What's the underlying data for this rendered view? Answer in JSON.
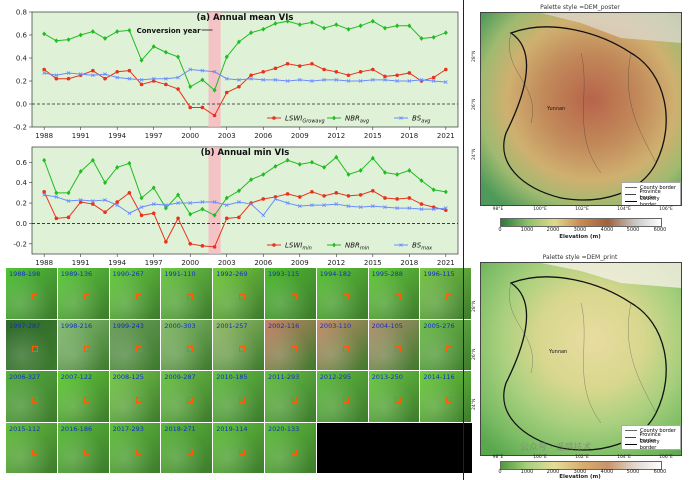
{
  "chart_data": [
    {
      "type": "line",
      "title": "(a) Annual mean VIs",
      "annotation": "Conversion year",
      "x": [
        1988,
        1989,
        1990,
        1991,
        1992,
        1993,
        1994,
        1995,
        1996,
        1997,
        1998,
        1999,
        2000,
        2001,
        2002,
        2003,
        2004,
        2005,
        2006,
        2007,
        2008,
        2009,
        2010,
        2011,
        2012,
        2013,
        2014,
        2015,
        2016,
        2017,
        2018,
        2019,
        2020,
        2021
      ],
      "xticks": [
        "1988",
        "1991",
        "1994",
        "1997",
        "2000",
        "2003",
        "2006",
        "2009",
        "2012",
        "2015",
        "2018",
        "2021"
      ],
      "ylim": [
        -0.2,
        0.8
      ],
      "yticks": [
        "0.8",
        "0.6",
        "0.4",
        "0.2",
        "0.0",
        "-0.2"
      ],
      "highlight_x": [
        2001.5,
        2002.5
      ],
      "zero_line": true,
      "legend_position": "lower-right",
      "series": [
        {
          "name": "LSWI",
          "sub": "Growavg",
          "color": "#e8331c",
          "marker": "circle",
          "values": [
            0.3,
            0.22,
            0.22,
            0.25,
            0.29,
            0.22,
            0.28,
            0.29,
            0.17,
            0.2,
            0.17,
            0.13,
            -0.03,
            -0.03,
            -0.1,
            0.1,
            0.15,
            0.25,
            0.28,
            0.31,
            0.35,
            0.33,
            0.35,
            0.3,
            0.28,
            0.25,
            0.28,
            0.3,
            0.24,
            0.25,
            0.27,
            0.2,
            0.23,
            0.3
          ]
        },
        {
          "name": "NBR",
          "sub": "avg",
          "color": "#22bb22",
          "marker": "diamond",
          "values": [
            0.61,
            0.55,
            0.56,
            0.6,
            0.63,
            0.57,
            0.63,
            0.64,
            0.38,
            0.5,
            0.45,
            0.41,
            0.15,
            0.21,
            0.12,
            0.41,
            0.54,
            0.62,
            0.65,
            0.7,
            0.72,
            0.69,
            0.71,
            0.66,
            0.69,
            0.65,
            0.68,
            0.72,
            0.66,
            0.68,
            0.68,
            0.57,
            0.58,
            0.62
          ]
        },
        {
          "name": "BS",
          "sub": "avg",
          "color": "#6a8cff",
          "marker": "x",
          "values": [
            0.27,
            0.25,
            0.27,
            0.26,
            0.25,
            0.26,
            0.23,
            0.22,
            0.21,
            0.22,
            0.22,
            0.23,
            0.3,
            0.29,
            0.28,
            0.22,
            0.21,
            0.22,
            0.21,
            0.21,
            0.2,
            0.21,
            0.2,
            0.21,
            0.21,
            0.2,
            0.2,
            0.21,
            0.21,
            0.2,
            0.2,
            0.21,
            0.2,
            0.19
          ]
        }
      ]
    },
    {
      "type": "line",
      "title": "(b) Annual min VIs",
      "x": [
        1988,
        1989,
        1990,
        1991,
        1992,
        1993,
        1994,
        1995,
        1996,
        1997,
        1998,
        1999,
        2000,
        2001,
        2002,
        2003,
        2004,
        2005,
        2006,
        2007,
        2008,
        2009,
        2010,
        2011,
        2012,
        2013,
        2014,
        2015,
        2016,
        2017,
        2018,
        2019,
        2020,
        2021
      ],
      "xticks": [
        "1988",
        "1991",
        "1994",
        "1997",
        "2000",
        "2003",
        "2006",
        "2009",
        "2012",
        "2015",
        "2018",
        "2021"
      ],
      "ylim": [
        -0.3,
        0.75
      ],
      "yticks": [
        "0.6",
        "0.4",
        "0.2",
        "0.0",
        "-0.2"
      ],
      "highlight_x": [
        2001.5,
        2002.5
      ],
      "zero_line": true,
      "legend_position": "lower-right",
      "series": [
        {
          "name": "LSWI",
          "sub": "min",
          "color": "#e8331c",
          "marker": "circle",
          "values": [
            0.31,
            0.05,
            0.06,
            0.21,
            0.19,
            0.11,
            0.21,
            0.3,
            0.08,
            0.1,
            -0.18,
            0.05,
            -0.2,
            -0.22,
            -0.23,
            0.05,
            0.06,
            0.2,
            0.24,
            0.26,
            0.29,
            0.26,
            0.31,
            0.27,
            0.3,
            0.27,
            0.28,
            0.32,
            0.25,
            0.24,
            0.25,
            0.19,
            0.16,
            0.13
          ]
        },
        {
          "name": "NBR",
          "sub": "min",
          "color": "#22bb22",
          "marker": "diamond",
          "values": [
            0.62,
            0.3,
            0.3,
            0.51,
            0.62,
            0.4,
            0.55,
            0.59,
            0.25,
            0.35,
            0.15,
            0.28,
            0.09,
            0.14,
            0.08,
            0.25,
            0.32,
            0.43,
            0.48,
            0.56,
            0.62,
            0.58,
            0.6,
            0.55,
            0.65,
            0.48,
            0.52,
            0.64,
            0.5,
            0.48,
            0.52,
            0.42,
            0.33,
            0.31
          ]
        },
        {
          "name": "BS",
          "sub": "max",
          "color": "#6a8cff",
          "marker": "x",
          "values": [
            0.28,
            0.26,
            0.22,
            0.23,
            0.22,
            0.23,
            0.18,
            0.1,
            0.16,
            0.19,
            0.18,
            0.2,
            0.2,
            0.21,
            0.21,
            0.18,
            0.21,
            0.19,
            0.08,
            0.24,
            0.2,
            0.17,
            0.18,
            0.18,
            0.19,
            0.17,
            0.16,
            0.17,
            0.16,
            0.15,
            0.15,
            0.14,
            0.14,
            0.15
          ]
        }
      ]
    }
  ],
  "tiles": [
    {
      "label": "1988-198",
      "color": "#52c43a"
    },
    {
      "label": "1989-136",
      "color": "#5fcf3e"
    },
    {
      "label": "1990-267",
      "color": "#68d040"
    },
    {
      "label": "1991-110",
      "color": "#6fcc48"
    },
    {
      "label": "1992-269",
      "color": "#78cf40"
    },
    {
      "label": "1993-115",
      "color": "#4fbd30"
    },
    {
      "label": "1994-182",
      "color": "#5cc638"
    },
    {
      "label": "1995-288",
      "color": "#65cc3d"
    },
    {
      "label": "1996-115",
      "color": "#7bc84a"
    },
    {
      "label": "1997-287",
      "color": "#2f6a2c"
    },
    {
      "label": "1998-216",
      "color": "#8bc07a"
    },
    {
      "label": "1999-243",
      "color": "#6fa060"
    },
    {
      "label": "2000-303",
      "color": "#8cbf70"
    },
    {
      "label": "2001-257",
      "color": "#9cc070"
    },
    {
      "label": "2002-116",
      "color": "#c9846a"
    },
    {
      "label": "2003-110",
      "color": "#c98f70"
    },
    {
      "label": "2004-105",
      "color": "#b79474"
    },
    {
      "label": "2005-276",
      "color": "#72c050"
    },
    {
      "label": "2006-327",
      "color": "#58b040"
    },
    {
      "label": "2007-122",
      "color": "#64d038"
    },
    {
      "label": "2008-125",
      "color": "#7acc4c"
    },
    {
      "label": "2009-287",
      "color": "#70c848"
    },
    {
      "label": "2010-185",
      "color": "#66c446"
    },
    {
      "label": "2011-293",
      "color": "#68c246"
    },
    {
      "label": "2012-295",
      "color": "#62c040"
    },
    {
      "label": "2013-250",
      "color": "#6ccc44"
    },
    {
      "label": "2014-116",
      "color": "#70d040"
    },
    {
      "label": "2015-112",
      "color": "#66c23e"
    },
    {
      "label": "2016-186",
      "color": "#5cc03a"
    },
    {
      "label": "2017-293",
      "color": "#62c23e"
    },
    {
      "label": "2018-271",
      "color": "#5bbb3a"
    },
    {
      "label": "2019-114",
      "color": "#64c63e"
    },
    {
      "label": "2020-133",
      "color": "#60c23c"
    }
  ],
  "maps": [
    {
      "title": "Palette style =DEM_poster",
      "place": "Yunnan",
      "legend": [
        "County border",
        "Province border",
        "Country border"
      ],
      "lon_ticks": [
        "98°E",
        "100°E",
        "102°E",
        "104°E",
        "106°E"
      ],
      "lat_ticks": [
        "28°N",
        "26°N",
        "24°N"
      ],
      "cbar_ticks": [
        "0",
        "1000",
        "2000",
        "3000",
        "4000",
        "5000",
        "6000"
      ],
      "cbar_title": "Elevation (m)"
    },
    {
      "title": "Palette style =DEM_print",
      "place": "Yunnan",
      "legend": [
        "County border",
        "Province border",
        "Country border"
      ],
      "lon_ticks": [
        "98°E",
        "100°E",
        "102°E",
        "104°E",
        "106°E"
      ],
      "lat_ticks": [
        "28°N",
        "26°N",
        "24°N"
      ],
      "cbar_ticks": [
        "0",
        "1000",
        "2000",
        "3000",
        "4000",
        "5000",
        "6000"
      ],
      "cbar_title": "Elevation (m)"
    }
  ],
  "watermark": "公众号 · 遥感技术",
  "colors": {
    "panel_bg": "#dff2d8",
    "highlight": "#f7b6c0"
  }
}
